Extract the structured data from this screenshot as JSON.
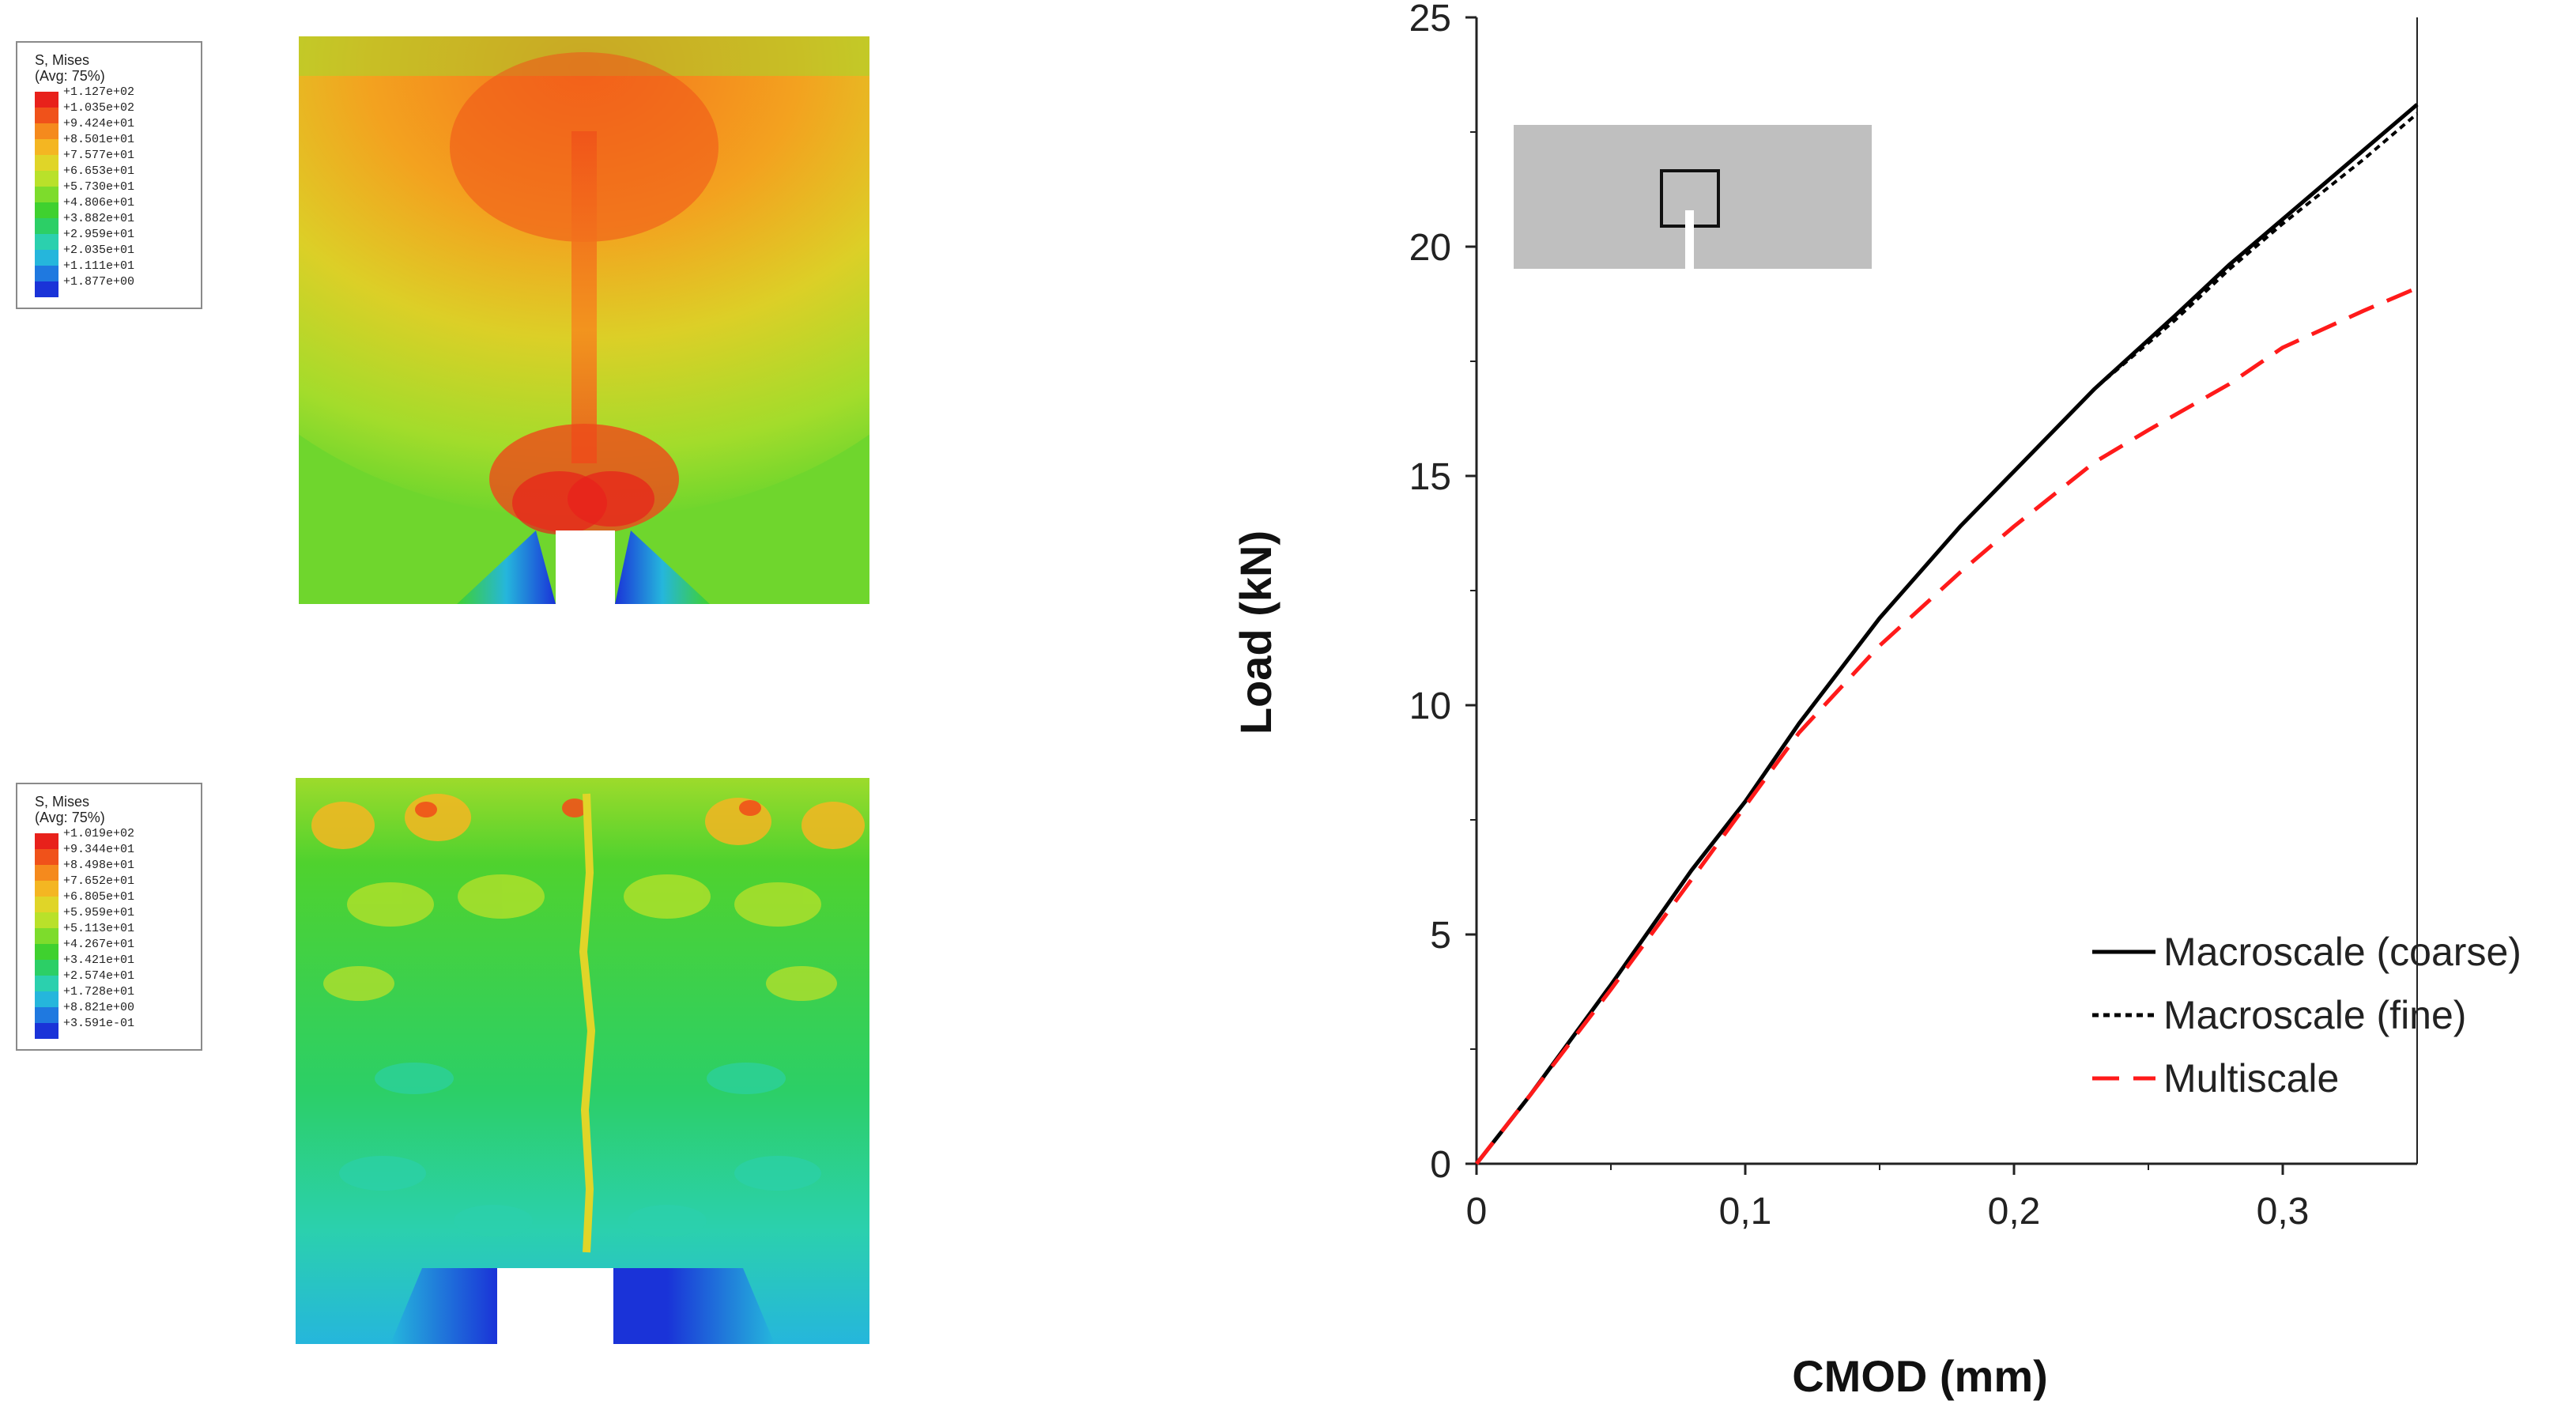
{
  "contour_plots": [
    {
      "legend_title": "S, Mises",
      "legend_subtitle": "(Avg: 75%)",
      "levels": [
        "+1.127e+02",
        "+1.035e+02",
        "+9.424e+01",
        "+8.501e+01",
        "+7.577e+01",
        "+6.653e+01",
        "+5.730e+01",
        "+4.806e+01",
        "+3.882e+01",
        "+2.959e+01",
        "+2.035e+01",
        "+1.111e+01",
        "+1.877e+00"
      ],
      "colors": [
        "#e8211b",
        "#f0521a",
        "#f58a1d",
        "#f4b622",
        "#e0d528",
        "#b9e12a",
        "#7ddc2c",
        "#3fd12f",
        "#2ccf66",
        "#2bd0ae",
        "#25b6dc",
        "#1f79e0",
        "#1a33d8"
      ]
    },
    {
      "legend_title": "S, Mises",
      "legend_subtitle": "(Avg: 75%)",
      "levels": [
        "+1.019e+02",
        "+9.344e+01",
        "+8.498e+01",
        "+7.652e+01",
        "+6.805e+01",
        "+5.959e+01",
        "+5.113e+01",
        "+4.267e+01",
        "+3.421e+01",
        "+2.574e+01",
        "+1.728e+01",
        "+8.821e+00",
        "+3.591e-01"
      ],
      "colors": [
        "#e8211b",
        "#f0521a",
        "#f58a1d",
        "#f4b622",
        "#e0d528",
        "#b9e12a",
        "#7ddc2c",
        "#3fd12f",
        "#2ccf66",
        "#2bd0ae",
        "#25b6dc",
        "#1f79e0",
        "#1a33d8"
      ]
    }
  ],
  "chart_data": {
    "type": "line",
    "xlabel": "CMOD (mm)",
    "ylabel": "Load (kN)",
    "xlim": [
      0,
      0.35
    ],
    "ylim": [
      0,
      25
    ],
    "x_ticks": [
      0,
      0.1,
      0.2,
      0.3
    ],
    "x_tick_labels": [
      "0",
      "0,1",
      "0,2",
      "0,3"
    ],
    "y_ticks": [
      0,
      5,
      10,
      15,
      20,
      25
    ],
    "y_tick_labels": [
      "0",
      "5",
      "10",
      "15",
      "20",
      "25"
    ],
    "legend_position": "bottom-right",
    "series": [
      {
        "name": "Macroscale (coarse)",
        "color": "#000000",
        "dash": "solid",
        "x": [
          0,
          0.02,
          0.05,
          0.08,
          0.1,
          0.12,
          0.15,
          0.18,
          0.2,
          0.23,
          0.26,
          0.28,
          0.3,
          0.33,
          0.35
        ],
        "y": [
          0,
          1.5,
          3.9,
          6.4,
          7.9,
          9.6,
          11.9,
          13.9,
          15.1,
          16.9,
          18.5,
          19.6,
          20.6,
          22.1,
          23.1
        ]
      },
      {
        "name": "Macroscale (fine)",
        "color": "#000000",
        "dash": "short",
        "x": [
          0,
          0.02,
          0.05,
          0.08,
          0.1,
          0.12,
          0.15,
          0.18,
          0.2,
          0.23,
          0.26,
          0.28,
          0.3,
          0.33,
          0.35
        ],
        "y": [
          0,
          1.5,
          3.9,
          6.4,
          7.9,
          9.6,
          11.9,
          13.9,
          15.1,
          16.9,
          18.4,
          19.5,
          20.5,
          21.9,
          22.9
        ]
      },
      {
        "name": "Multiscale",
        "color": "#ff1a1a",
        "dash": "long",
        "x": [
          0,
          0.02,
          0.05,
          0.08,
          0.1,
          0.12,
          0.15,
          0.18,
          0.2,
          0.23,
          0.25,
          0.28,
          0.3,
          0.33,
          0.35
        ],
        "y": [
          0,
          1.5,
          3.8,
          6.2,
          7.8,
          9.4,
          11.3,
          12.9,
          13.9,
          15.3,
          16.0,
          17.0,
          17.8,
          18.6,
          19.1
        ]
      }
    ]
  }
}
